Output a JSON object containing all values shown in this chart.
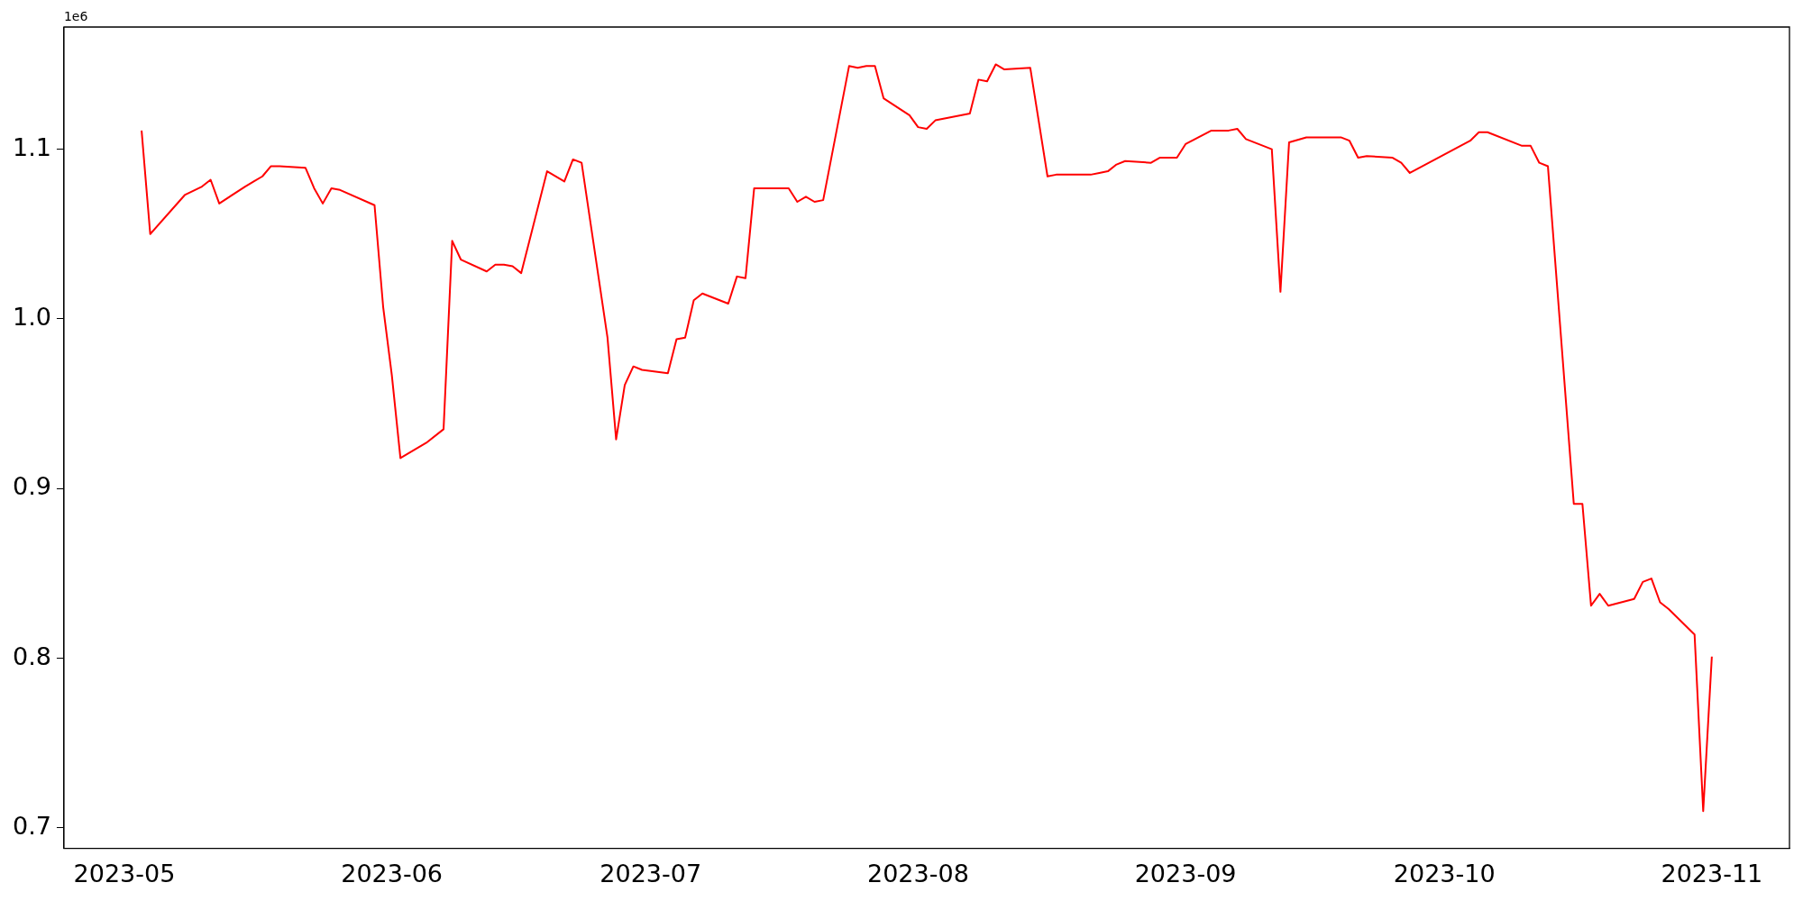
{
  "chart_data": {
    "type": "line",
    "x": [
      "2023-05-03",
      "2023-05-04",
      "2023-05-08",
      "2023-05-10",
      "2023-05-11",
      "2023-05-12",
      "2023-05-15",
      "2023-05-16",
      "2023-05-17",
      "2023-05-18",
      "2023-05-19",
      "2023-05-22",
      "2023-05-23",
      "2023-05-24",
      "2023-05-25",
      "2023-05-26",
      "2023-05-30",
      "2023-05-31",
      "2023-06-01",
      "2023-06-02",
      "2023-06-05",
      "2023-06-07",
      "2023-06-08",
      "2023-06-09",
      "2023-06-12",
      "2023-06-13",
      "2023-06-14",
      "2023-06-15",
      "2023-06-16",
      "2023-06-19",
      "2023-06-21",
      "2023-06-22",
      "2023-06-23",
      "2023-06-26",
      "2023-06-27",
      "2023-06-28",
      "2023-06-29",
      "2023-06-30",
      "2023-07-03",
      "2023-07-04",
      "2023-07-05",
      "2023-07-06",
      "2023-07-07",
      "2023-07-10",
      "2023-07-11",
      "2023-07-12",
      "2023-07-13",
      "2023-07-17",
      "2023-07-18",
      "2023-07-19",
      "2023-07-20",
      "2023-07-21",
      "2023-07-24",
      "2023-07-25",
      "2023-07-26",
      "2023-07-27",
      "2023-07-28",
      "2023-07-31",
      "2023-08-01",
      "2023-08-02",
      "2023-08-03",
      "2023-08-07",
      "2023-08-08",
      "2023-08-09",
      "2023-08-10",
      "2023-08-11",
      "2023-08-14",
      "2023-08-16",
      "2023-08-17",
      "2023-08-18",
      "2023-08-21",
      "2023-08-22",
      "2023-08-23",
      "2023-08-24",
      "2023-08-25",
      "2023-08-28",
      "2023-08-29",
      "2023-08-31",
      "2023-09-01",
      "2023-09-04",
      "2023-09-05",
      "2023-09-06",
      "2023-09-07",
      "2023-09-08",
      "2023-09-11",
      "2023-09-12",
      "2023-09-13",
      "2023-09-15",
      "2023-09-19",
      "2023-09-20",
      "2023-09-21",
      "2023-09-22",
      "2023-09-25",
      "2023-09-26",
      "2023-09-27",
      "2023-10-04",
      "2023-10-05",
      "2023-10-06",
      "2023-10-10",
      "2023-10-11",
      "2023-10-12",
      "2023-10-13",
      "2023-10-16",
      "2023-10-17",
      "2023-10-18",
      "2023-10-19",
      "2023-10-20",
      "2023-10-23",
      "2023-10-24",
      "2023-10-25",
      "2023-10-26",
      "2023-10-27",
      "2023-10-30",
      "2023-10-31",
      "2023-11-01"
    ],
    "series": [
      {
        "color": "#ff0000",
        "values": [
          1.111,
          1.05,
          1.073,
          1.078,
          1.082,
          1.068,
          1.078,
          1.081,
          1.084,
          1.09,
          1.09,
          1.089,
          1.077,
          1.068,
          1.077,
          1.076,
          1.067,
          1.007,
          0.967,
          0.918,
          0.927,
          0.935,
          1.046,
          1.035,
          1.028,
          1.032,
          1.032,
          1.031,
          1.027,
          1.087,
          1.081,
          1.094,
          1.092,
          0.989,
          0.929,
          0.961,
          0.972,
          0.97,
          0.968,
          0.988,
          0.989,
          1.011,
          1.015,
          1.009,
          1.025,
          1.024,
          1.077,
          1.077,
          1.069,
          1.072,
          1.069,
          1.07,
          1.149,
          1.148,
          1.149,
          1.149,
          1.13,
          1.12,
          1.113,
          1.112,
          1.117,
          1.121,
          1.141,
          1.14,
          1.15,
          1.147,
          1.148,
          1.084,
          1.085,
          1.085,
          1.085,
          1.086,
          1.087,
          1.091,
          1.093,
          1.092,
          1.095,
          1.095,
          1.103,
          1.111,
          1.111,
          1.111,
          1.112,
          1.106,
          1.1,
          1.016,
          1.104,
          1.107,
          1.107,
          1.105,
          1.095,
          1.096,
          1.095,
          1.092,
          1.086,
          1.105,
          1.11,
          1.11,
          1.102,
          1.102,
          1.092,
          1.09,
          0.891,
          0.891,
          0.831,
          0.838,
          0.831,
          0.835,
          0.845,
          0.847,
          0.833,
          0.829,
          0.814,
          0.71,
          0.801
        ]
      }
    ],
    "xlim": [
      "2023-04-24",
      "2023-11-10"
    ],
    "xticks": [
      "2023-05",
      "2023-06",
      "2023-07",
      "2023-08",
      "2023-09",
      "2023-10",
      "2023-11"
    ],
    "ylim": [
      0.688,
      1.172
    ],
    "yticks": [
      0.7,
      0.8,
      0.9,
      {
        "value": 1,
        "label": "1.0"
      },
      1.1
    ],
    "annotations": [
      "1e6"
    ],
    "grid": false,
    "legend": false,
    "marker": "none",
    "line_style": "solid"
  }
}
